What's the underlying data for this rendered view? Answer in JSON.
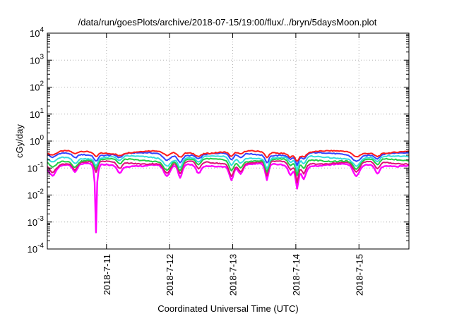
{
  "chart_data": {
    "type": "line",
    "title": "/data/run/goesPlots/archive/2018-07-15/19:00/flux/../bryn/5daysMoon.plot",
    "xlabel": "Coordinated Universal Time (UTC)",
    "ylabel": "cGy/day",
    "yscale": "log",
    "ylim": [
      0.0001,
      10000
    ],
    "xlim": [
      "2018-07-10T01:30",
      "2018-07-15T19:00"
    ],
    "grid": true,
    "legend": "none",
    "y_ticks": [
      {
        "base": "10",
        "exp": "-4"
      },
      {
        "base": "10",
        "exp": "-3"
      },
      {
        "base": "10",
        "exp": "-2"
      },
      {
        "base": "10",
        "exp": "-1"
      },
      {
        "base": "10",
        "exp": "0"
      },
      {
        "base": "10",
        "exp": "1"
      },
      {
        "base": "10",
        "exp": "2"
      },
      {
        "base": "10",
        "exp": "3"
      },
      {
        "base": "10",
        "exp": "4"
      }
    ],
    "x_ticks": [
      "2018-7-11",
      "2018-7-12",
      "2018-7-13",
      "2018-7-14",
      "2018-7-15"
    ],
    "dips": [
      {
        "x": "2018-07-10T03:30",
        "factor": 0.45,
        "width_h": 3
      },
      {
        "x": "2018-07-10T12:00",
        "factor": 0.5,
        "width_h": 2
      },
      {
        "x": "2018-07-10T20:00",
        "factor": 0.0028,
        "width_h": 1.5
      },
      {
        "x": "2018-07-11T05:00",
        "factor": 0.55,
        "width_h": 2
      },
      {
        "x": "2018-07-11T23:00",
        "factor": 0.35,
        "width_h": 3
      },
      {
        "x": "2018-07-12T04:00",
        "factor": 0.3,
        "width_h": 2
      },
      {
        "x": "2018-07-12T11:00",
        "factor": 0.5,
        "width_h": 2
      },
      {
        "x": "2018-07-12T23:30",
        "factor": 0.3,
        "width_h": 2
      },
      {
        "x": "2018-07-13T03:00",
        "factor": 0.45,
        "width_h": 2
      },
      {
        "x": "2018-07-13T13:00",
        "factor": 0.25,
        "width_h": 1.5
      },
      {
        "x": "2018-07-13T22:00",
        "factor": 0.45,
        "width_h": 2
      },
      {
        "x": "2018-07-14T00:30",
        "factor": 0.15,
        "width_h": 1.5
      },
      {
        "x": "2018-07-14T03:00",
        "factor": 0.35,
        "width_h": 2
      },
      {
        "x": "2018-07-14T23:00",
        "factor": 0.35,
        "width_h": 3
      },
      {
        "x": "2018-07-15T07:00",
        "factor": 0.5,
        "width_h": 2
      }
    ],
    "series": [
      {
        "color": "#ff1a1a",
        "level": 0.39
      },
      {
        "color": "#3344ff",
        "level": 0.33
      },
      {
        "color": "#33dddd",
        "level": 0.25
      },
      {
        "color": "#22cc44",
        "level": 0.2
      },
      {
        "color": "#dd1177",
        "level": 0.16
      },
      {
        "color": "#ff00ff",
        "level": 0.13
      }
    ]
  }
}
